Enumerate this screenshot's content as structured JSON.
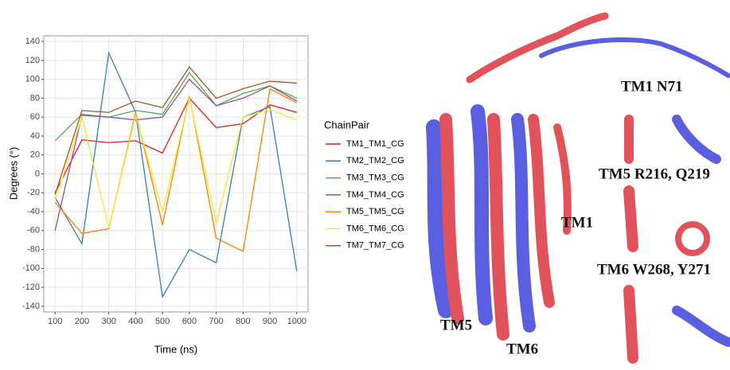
{
  "chart_data": {
    "type": "line",
    "x_label": "Time (ns)",
    "y_label": "Degrees (°)",
    "x": [
      100,
      200,
      300,
      400,
      500,
      600,
      700,
      800,
      900,
      1000
    ],
    "xlim": [
      58,
      1042
    ],
    "xticks": [
      100,
      200,
      300,
      400,
      500,
      600,
      700,
      800,
      900,
      1000
    ],
    "ylim": [
      -146,
      146
    ],
    "yticks": [
      -140,
      -120,
      -100,
      -80,
      -60,
      -40,
      -20,
      0,
      20,
      40,
      60,
      80,
      100,
      120,
      140
    ],
    "grid": true,
    "legend_title": "ChainPair",
    "series": [
      {
        "name": "TM1_TM1_CG",
        "color": "#e41a1c",
        "values": [
          -20,
          36,
          33,
          35,
          22,
          80,
          49,
          53,
          73,
          65
        ]
      },
      {
        "name": "TM2_TM2_CG",
        "color": "#377eb8",
        "values": [
          -25,
          -74,
          128,
          65,
          -130,
          -80,
          -94,
          60,
          71,
          -103
        ]
      },
      {
        "name": "TM3_TM3_CG",
        "color": "#4daf4a",
        "values": [
          35,
          63,
          60,
          67,
          63,
          107,
          72,
          85,
          93,
          80
        ]
      },
      {
        "name": "TM4_TM4_CG",
        "color": "#984ea3",
        "values": [
          -60,
          62,
          60,
          57,
          60,
          100,
          72,
          80,
          93,
          77
        ]
      },
      {
        "name": "TM5_TM5_CG",
        "color": "#ff7f00",
        "values": [
          -30,
          -63,
          -58,
          65,
          -54,
          82,
          -68,
          -82,
          90,
          75
        ]
      },
      {
        "name": "TM6_TM6_CG",
        "color": "#f2e836",
        "values": [
          -28,
          60,
          -57,
          62,
          -40,
          80,
          -52,
          60,
          68,
          57
        ]
      },
      {
        "name": "TM7_TM7_CG",
        "color": "#a65628",
        "values": [
          -22,
          67,
          65,
          77,
          70,
          113,
          80,
          90,
          98,
          96
        ]
      }
    ]
  },
  "structure": {
    "labels": [
      "TM1 N71",
      "TM5 R216, Q219",
      "TM6 W268, Y271",
      "TM1",
      "TM5",
      "TM6"
    ]
  }
}
